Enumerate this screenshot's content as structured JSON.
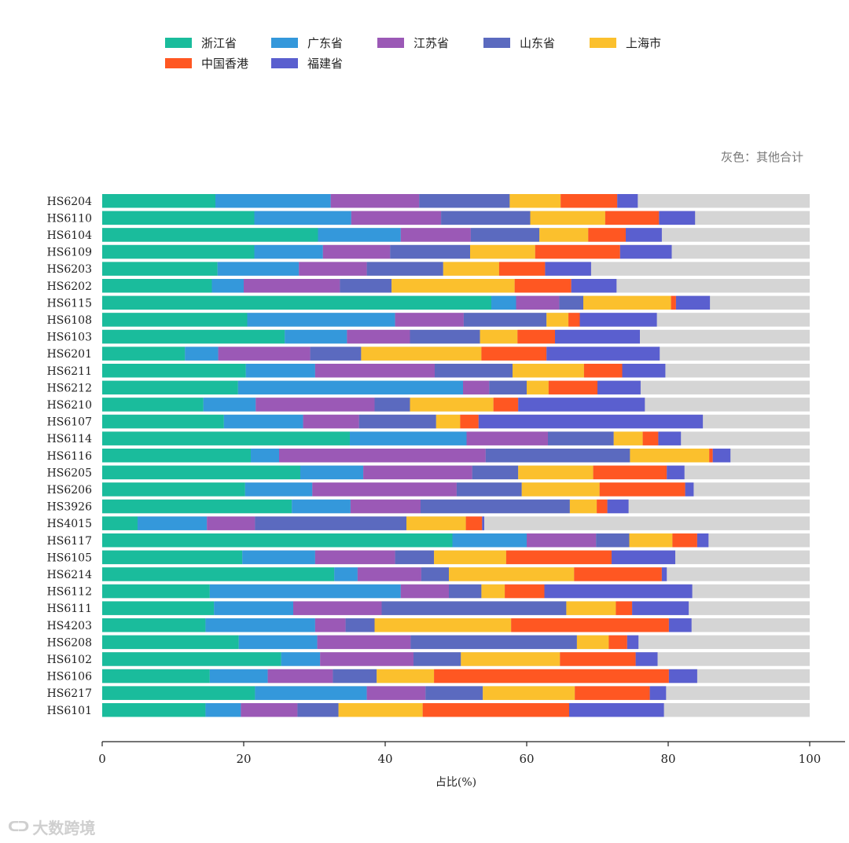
{
  "note": "灰色：其他合计",
  "watermark": "大数跨境",
  "chart_data": {
    "type": "bar",
    "orientation": "horizontal",
    "stacked": true,
    "xlabel": "占比(%)",
    "xlim": [
      0,
      100
    ],
    "xticks": [
      0,
      20,
      40,
      60,
      80,
      100
    ],
    "legend_placement": "top",
    "categories": [
      "HS6204",
      "HS6110",
      "HS6104",
      "HS6109",
      "HS6203",
      "HS6202",
      "HS6115",
      "HS6108",
      "HS6103",
      "HS6201",
      "HS6211",
      "HS6212",
      "HS6210",
      "HS6107",
      "HS6114",
      "HS6116",
      "HS6205",
      "HS6206",
      "HS3926",
      "HS4015",
      "HS6117",
      "HS6105",
      "HS6214",
      "HS6112",
      "HS6111",
      "HS4203",
      "HS6208",
      "HS6102",
      "HS6106",
      "HS6217",
      "HS6101"
    ],
    "series": [
      {
        "name": "浙江省",
        "color": "#1abc9c",
        "values": [
          16,
          21.5,
          30.5,
          21.5,
          16.3,
          15.5,
          55,
          20.5,
          25.8,
          11.7,
          20.3,
          19.2,
          14.3,
          17.2,
          35,
          21,
          28,
          20.2,
          26.8,
          5,
          49.5,
          19.8,
          32.8,
          15.2,
          15.8,
          14.6,
          19.3,
          25.3,
          15.2,
          21.6,
          14.6
        ]
      },
      {
        "name": "广东省",
        "color": "#3498db",
        "values": [
          16.3,
          13.7,
          11.7,
          9.7,
          11.5,
          4.5,
          3.5,
          20.9,
          8.8,
          4.7,
          9.8,
          31.8,
          7.4,
          11.2,
          16.5,
          4,
          8.9,
          9.5,
          8.3,
          9.8,
          10.5,
          10.3,
          3.3,
          27,
          11.2,
          15.5,
          11.1,
          5.5,
          8.2,
          15.8,
          5
        ]
      },
      {
        "name": "江苏省",
        "color": "#9b59b6",
        "values": [
          12.5,
          12.7,
          9.9,
          9.5,
          9.6,
          13.6,
          6.1,
          9.7,
          8.9,
          13,
          16.9,
          3.7,
          16.8,
          7.9,
          11.5,
          29.2,
          15.4,
          20.4,
          9.9,
          6.8,
          9.8,
          11.3,
          9,
          6.8,
          12.5,
          4.3,
          13.2,
          13.2,
          9.2,
          8.3,
          8
        ]
      },
      {
        "name": "山东省",
        "color": "#5b6abf",
        "values": [
          12.8,
          12.6,
          9.7,
          11.3,
          10.8,
          7.3,
          3.4,
          11.7,
          9.9,
          7.2,
          11,
          5.3,
          5,
          10.9,
          9.3,
          20.4,
          6.5,
          9.2,
          21.1,
          21.4,
          4.7,
          5.5,
          3.9,
          4.6,
          26.1,
          4.1,
          23.5,
          6.7,
          6.2,
          8.1,
          5.8
        ]
      },
      {
        "name": "上海市",
        "color": "#fbc02d",
        "values": [
          7.2,
          10.6,
          6.9,
          9.2,
          7.9,
          17.4,
          12.4,
          3.1,
          5.3,
          17,
          10.1,
          3.1,
          11.8,
          3.4,
          4.1,
          11.2,
          10.6,
          11,
          3.8,
          8.4,
          6.1,
          10.2,
          17.7,
          3.3,
          7,
          19.3,
          4.5,
          14,
          8.1,
          13,
          11.9
        ]
      },
      {
        "name": "中国香港",
        "color": "#ff5722",
        "values": [
          8,
          7.6,
          5.3,
          12,
          6.5,
          8,
          0.7,
          1.6,
          5.3,
          9.2,
          5.4,
          6.9,
          3.5,
          2.6,
          2.2,
          0.5,
          10.4,
          12.1,
          1.5,
          2.3,
          3.5,
          14.9,
          12.4,
          5.6,
          2.3,
          22.3,
          2.6,
          10.7,
          33.2,
          10.6,
          20.7
        ]
      },
      {
        "name": "福建省",
        "color": "#5a5fcf",
        "values": [
          2.9,
          5.1,
          5.1,
          7.3,
          6.5,
          6.4,
          4.8,
          10.9,
          12,
          16,
          6.1,
          6.1,
          17.9,
          31.7,
          3.2,
          2.5,
          2.5,
          1.2,
          3,
          0.3,
          1.6,
          9,
          0.7,
          20.9,
          8,
          3.2,
          1.6,
          3.1,
          4,
          2.3,
          13.4
        ]
      }
    ],
    "remainder_color": "#d5d5d5",
    "remainder_meaning": "其他合计"
  }
}
